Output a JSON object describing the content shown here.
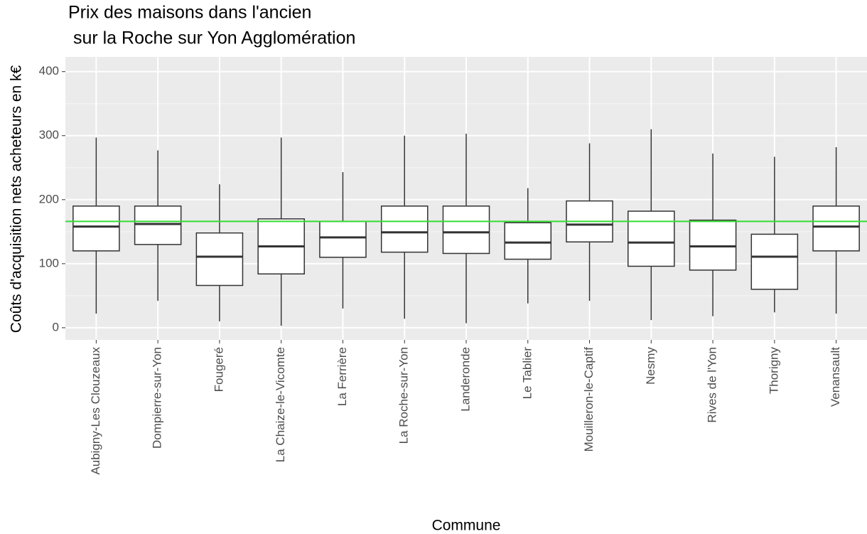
{
  "chart_data": {
    "type": "boxplot",
    "title": [
      "Prix des maisons dans l'ancien",
      " sur la Roche sur Yon Agglomération"
    ],
    "x_label": "Commune",
    "y_label": "Coûts d'acquisition nets acheteurs en k€",
    "categories": [
      "Aubigny-Les Clouzeaux",
      "Dompierre-sur-Yon",
      "Fougeré",
      "La Chaize-le-Vicomte",
      "La Ferrière",
      "La Roche-sur-Yon",
      "Landeronde",
      "Le Tablier",
      "Mouilleron-le-Captif",
      "Nesmy",
      "Rives de l'Yon",
      "Thorigny",
      "Venansault"
    ],
    "min": [
      22,
      42,
      10,
      3,
      30,
      14,
      7,
      38,
      42,
      12,
      18,
      24,
      22
    ],
    "q1": [
      120,
      130,
      66,
      84,
      110,
      118,
      116,
      107,
      134,
      96,
      90,
      60,
      120
    ],
    "median": [
      158,
      162,
      111,
      127,
      141,
      149,
      149,
      133,
      161,
      133,
      127,
      111,
      158
    ],
    "q3": [
      190,
      190,
      148,
      170,
      166,
      190,
      190,
      164,
      198,
      182,
      168,
      146,
      190
    ],
    "max": [
      297,
      277,
      224,
      297,
      243,
      300,
      303,
      218,
      288,
      310,
      272,
      267,
      282
    ],
    "reference_line": {
      "value": 166,
      "color": "#33dd33"
    },
    "ylim": [
      -19,
      423
    ],
    "yticks": [
      0,
      100,
      200,
      300,
      400
    ],
    "y_minor_ticks": [
      50,
      150,
      250,
      350
    ],
    "grid": true
  }
}
